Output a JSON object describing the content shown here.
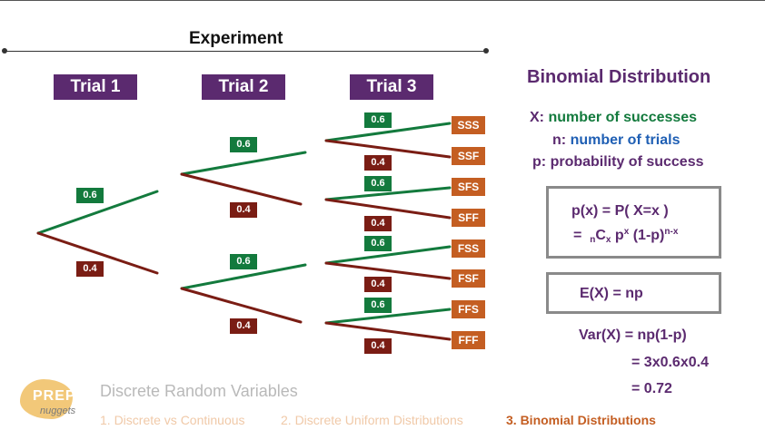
{
  "experiment_label": "Experiment",
  "trials": [
    "Trial 1",
    "Trial 2",
    "Trial 3"
  ],
  "tree": {
    "level1": {
      "success_prob": "0.6",
      "failure_prob": "0.4"
    },
    "level2": [
      {
        "success_prob": "0.6",
        "failure_prob": "0.4"
      },
      {
        "success_prob": "0.6",
        "failure_prob": "0.4"
      }
    ],
    "level3": [
      {
        "success_prob": "0.6",
        "failure_prob": "0.4"
      },
      {
        "success_prob": "0.6",
        "failure_prob": "0.4"
      },
      {
        "success_prob": "0.6",
        "failure_prob": "0.4"
      },
      {
        "success_prob": "0.6",
        "failure_prob": "0.4"
      }
    ],
    "outcomes": [
      "SSS",
      "SSF",
      "SFS",
      "SFF",
      "FSS",
      "FSF",
      "FFS",
      "FFF"
    ]
  },
  "binomial": {
    "title": "Binomial Distribution",
    "defs": [
      {
        "key": "X:",
        "text": "number of successes",
        "color": "#137a3d"
      },
      {
        "key": "n:",
        "text": "number of trials",
        "color": "#1f5fb4"
      },
      {
        "key": "p:",
        "text": "probability of success",
        "color": "#5b2a6f"
      }
    ],
    "pmf_line1": "p(x) = P( X=x )",
    "pmf_line2_prefix": "=",
    "pmf_sub_n": "n",
    "pmf_C": "C",
    "pmf_sub_x": "x",
    "pmf_p": "p",
    "pmf_sup_x": "x",
    "pmf_tail": "(1-p)",
    "pmf_sup_nx": "n-x",
    "expectation": "E(X) = np",
    "variance_line1": "Var(X) = np(1-p)",
    "variance_line2": "= 3x0.6x0.4",
    "variance_line3": "= 0.72"
  },
  "footer": {
    "logo_text": "PREP",
    "logo_sub": "nuggets",
    "section_title": "Discrete Random Variables",
    "items": [
      {
        "label": "1. Discrete vs Continuous",
        "color": "#f0c9a8"
      },
      {
        "label": "2. Discrete Uniform Distributions",
        "color": "#f0c9a8"
      },
      {
        "label": "3. Binomial Distributions",
        "color": "#c45e22"
      }
    ]
  },
  "colors": {
    "success": "#137a3d",
    "failure": "#7a1d14",
    "trial_header": "#5b2a6f",
    "outcome": "#c45e22"
  }
}
